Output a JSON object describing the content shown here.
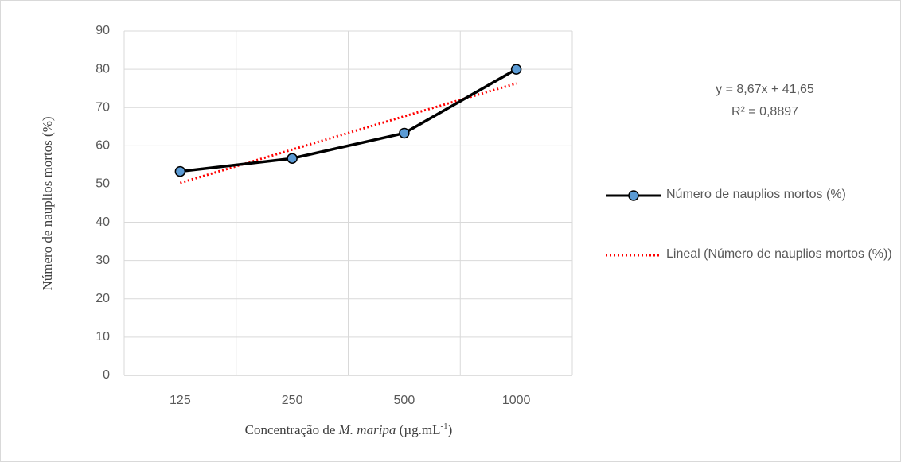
{
  "chart_data": {
    "type": "line",
    "ylabel": "Número de nauplios mortos (%)",
    "xlabel_parts": [
      "Concentração de ",
      "M. maripa",
      " (µg.mL",
      "-1",
      ")"
    ],
    "categories": [
      "125",
      "250",
      "500",
      "1000"
    ],
    "series": [
      {
        "name": "Número de nauplios mortos (%)",
        "color": "#000000",
        "marker_color": "#5b9bd5",
        "marker": "circle",
        "style": "solid",
        "values": [
          53.3,
          56.7,
          63.3,
          80
        ]
      },
      {
        "name": "Lineal (Número de nauplios mortos (%))",
        "color": "#ff0000",
        "style": "dotted",
        "values": [
          50.3,
          59.0,
          67.7,
          76.3
        ]
      }
    ],
    "annotations": [
      "y = 8,67x + 41,65",
      "R² = 0,8897"
    ],
    "ylim": [
      0,
      90
    ],
    "yticks": [
      0,
      10,
      20,
      30,
      40,
      50,
      60,
      70,
      80,
      90
    ],
    "grid": true,
    "legend": "right"
  }
}
